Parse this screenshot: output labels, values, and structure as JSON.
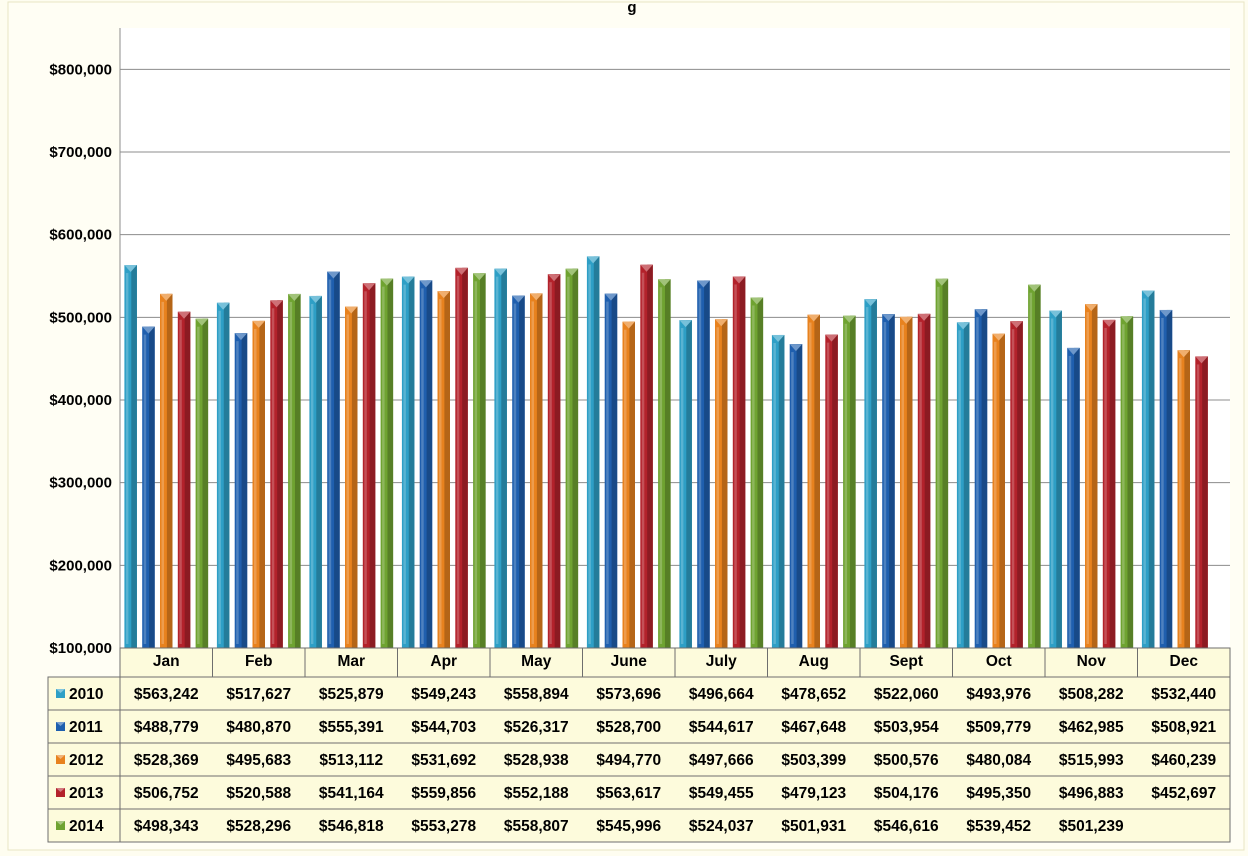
{
  "page": {
    "title_fragment": "g"
  },
  "chart_data": {
    "type": "bar",
    "title": "",
    "xlabel": "",
    "ylabel": "",
    "ylim": [
      100000,
      850000
    ],
    "yticks": [
      100000,
      200000,
      300000,
      400000,
      500000,
      600000,
      700000,
      800000
    ],
    "ytick_labels": [
      "$100,000",
      "$200,000",
      "$300,000",
      "$400,000",
      "$500,000",
      "$600,000",
      "$700,000",
      "$800,000"
    ],
    "grid": true,
    "legend": "data-table",
    "categories": [
      "Jan",
      "Feb",
      "Mar",
      "Apr",
      "May",
      "June",
      "July",
      "Aug",
      "Sept",
      "Oct",
      "Nov",
      "Dec"
    ],
    "series": [
      {
        "name": "2010",
        "color": "#2e9fc6",
        "values": [
          563242,
          517627,
          525879,
          549243,
          558894,
          573696,
          496664,
          478652,
          522060,
          493976,
          508282,
          532440
        ],
        "labels": [
          "$563,242",
          "$517,627",
          "$525,879",
          "$549,243",
          "$558,894",
          "$573,696",
          "$496,664",
          "$478,652",
          "$522,060",
          "$493,976",
          "$508,282",
          "$532,440"
        ]
      },
      {
        "name": "2011",
        "color": "#1f5fae",
        "values": [
          488779,
          480870,
          555391,
          544703,
          526317,
          528700,
          544617,
          467648,
          503954,
          509779,
          462985,
          508921
        ],
        "labels": [
          "$488,779",
          "$480,870",
          "$555,391",
          "$544,703",
          "$526,317",
          "$528,700",
          "$544,617",
          "$467,648",
          "$503,954",
          "$509,779",
          "$462,985",
          "$508,921"
        ]
      },
      {
        "name": "2012",
        "color": "#e8821e",
        "values": [
          528369,
          495683,
          513112,
          531692,
          528938,
          494770,
          497666,
          503399,
          500576,
          480084,
          515993,
          460239
        ],
        "labels": [
          "$528,369",
          "$495,683",
          "$513,112",
          "$531,692",
          "$528,938",
          "$494,770",
          "$497,666",
          "$503,399",
          "$500,576",
          "$480,084",
          "$515,993",
          "$460,239"
        ]
      },
      {
        "name": "2013",
        "color": "#b3222b",
        "values": [
          506752,
          520588,
          541164,
          559856,
          552188,
          563617,
          549455,
          479123,
          504176,
          495350,
          496883,
          452697
        ],
        "labels": [
          "$506,752",
          "$520,588",
          "$541,164",
          "$559,856",
          "$552,188",
          "$563,617",
          "$549,455",
          "$479,123",
          "$504,176",
          "$495,350",
          "$496,883",
          "$452,697"
        ]
      },
      {
        "name": "2014",
        "color": "#6fa331",
        "values": [
          498343,
          528296,
          546818,
          553278,
          558807,
          545996,
          524037,
          501931,
          546616,
          539452,
          501239,
          null
        ],
        "labels": [
          "$498,343",
          "$528,296",
          "$546,818",
          "$553,278",
          "$558,807",
          "$545,996",
          "$524,037",
          "$501,931",
          "$546,616",
          "$539,452",
          "$501,239",
          ""
        ]
      }
    ]
  }
}
